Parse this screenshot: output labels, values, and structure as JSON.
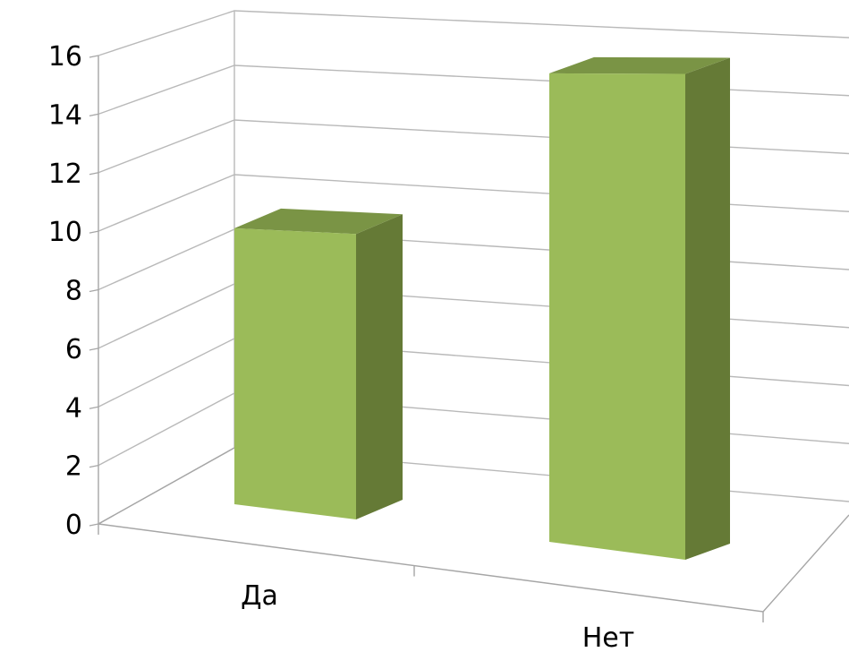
{
  "chart_data": {
    "type": "bar",
    "categories": [
      "Да",
      "Нет"
    ],
    "values": [
      10,
      15.5
    ],
    "title": "",
    "xlabel": "",
    "ylabel": "",
    "ylim": [
      0,
      16
    ],
    "yticks": [
      "0",
      "2",
      "4",
      "6",
      "8",
      "10",
      "12",
      "14",
      "16"
    ],
    "grid": true,
    "legend": "none",
    "colors": {
      "bar_front": "#9bbb59",
      "bar_top": "#7a9445",
      "bar_side": "#657a36"
    }
  }
}
